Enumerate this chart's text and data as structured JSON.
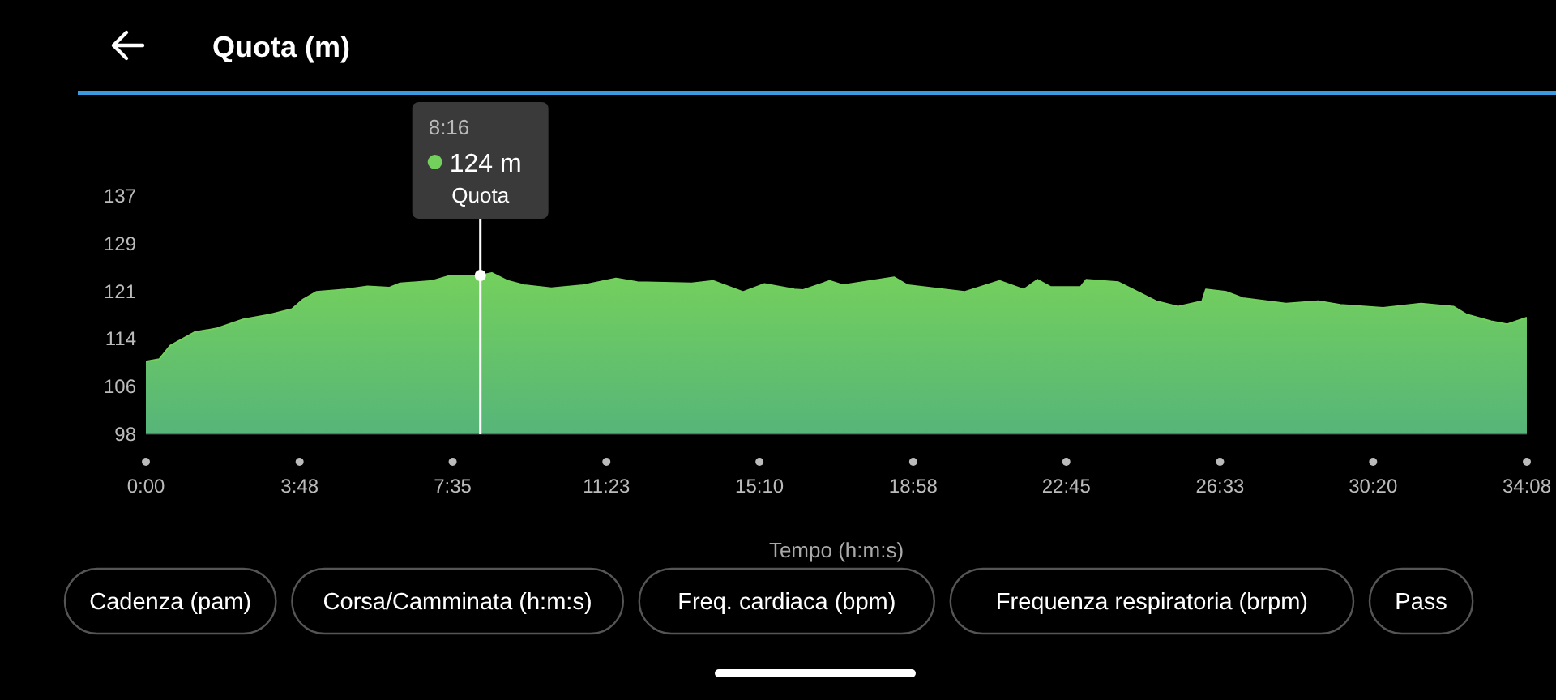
{
  "chart_data": {
    "type": "area",
    "title": "Quota (m)",
    "xlabel": "Tempo (h:m:s)",
    "x": [
      0,
      0.33,
      0.6,
      1.2,
      1.73,
      2.4,
      3.07,
      3.61,
      3.87,
      4.21,
      4.94,
      5.48,
      6.01,
      6.28,
      7.08,
      7.54,
      8.267,
      8.55,
      8.95,
      9.35,
      10.02,
      10.82,
      11.62,
      12.15,
      13.49,
      14.02,
      14.76,
      15.29,
      16.03,
      16.23,
      16.9,
      17.23,
      18.5,
      18.83,
      20.23,
      21.1,
      21.7,
      22.04,
      22.37,
      23.1,
      23.24,
      24.04,
      24.97,
      25.51,
      26.11,
      26.2,
      26.71,
      27.11,
      28.18,
      28.98,
      29.52,
      30.58,
      31.52,
      32.32,
      32.65,
      33.25,
      33.65,
      34.133
    ],
    "series": [
      {
        "color": "#74d05c",
        "values": [
          109.9,
          110.3,
          112.5,
          114.7,
          115.3,
          116.8,
          117.6,
          118.5,
          120,
          121.3,
          121.7,
          122.2,
          122,
          122.7,
          123.1,
          124,
          124,
          124.4,
          123.1,
          122.4,
          121.9,
          122.4,
          123.5,
          122.9,
          122.7,
          123.1,
          121.3,
          122.6,
          121.7,
          121.6,
          123.1,
          122.4,
          123.7,
          122.4,
          121.3,
          123.1,
          121.7,
          123.3,
          122.1,
          122.1,
          123.3,
          122.9,
          119.8,
          118.9,
          119.8,
          121.7,
          121.3,
          120.3,
          119.4,
          119.8,
          119.2,
          118.7,
          119.4,
          118.9,
          117.6,
          116.5,
          116,
          117.1
        ]
      }
    ],
    "xlim": [
      0,
      34.1333
    ],
    "xticks": [
      {
        "value": 0,
        "label": "0:00"
      },
      {
        "value": 3.8,
        "label": "3:48"
      },
      {
        "value": 7.5833,
        "label": "7:35"
      },
      {
        "value": 11.3833,
        "label": "11:23"
      },
      {
        "value": 15.1667,
        "label": "15:10"
      },
      {
        "value": 18.9667,
        "label": "18:58"
      },
      {
        "value": 22.75,
        "label": "22:45"
      },
      {
        "value": 26.55,
        "label": "26:33"
      },
      {
        "value": 30.3333,
        "label": "30:20"
      },
      {
        "value": 34.1333,
        "label": "34:08"
      }
    ],
    "ylim": [
      98,
      137
    ],
    "yticks": [
      98,
      {
        "value": 105.8,
        "label": "106"
      },
      {
        "value": 113.6,
        "label": "114"
      },
      {
        "value": 121.4,
        "label": "121"
      },
      {
        "value": 129.2,
        "label": "129"
      },
      137
    ],
    "ref_lines": [
      {
        "axis": "x",
        "value": 8.267,
        "color": "#ffffff"
      }
    ],
    "annotations": [
      "8:16",
      "124 m",
      "Quota",
      "Cadenza (pam)",
      "Corsa/Camminata (h:m:s)",
      "Freq. cardiaca (bpm)",
      "Frequenza respiratoria (brpm)",
      "Pass"
    ],
    "grid": false,
    "marker": "none"
  }
}
